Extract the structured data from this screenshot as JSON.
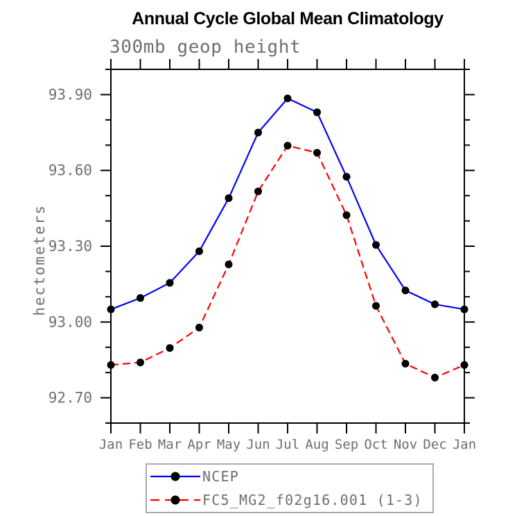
{
  "chart_data": {
    "type": "line",
    "title": "Annual Cycle Global Mean Climatology",
    "subtitle": "300mb geop height",
    "ylabel": "hectometers",
    "xlabel": "",
    "categories": [
      "Jan",
      "Feb",
      "Mar",
      "Apr",
      "May",
      "Jun",
      "Jul",
      "Aug",
      "Sep",
      "Oct",
      "Nov",
      "Dec",
      "Jan"
    ],
    "ylim": [
      92.6,
      94.0
    ],
    "yticks_major": [
      92.7,
      93.0,
      93.3,
      93.6,
      93.9
    ],
    "ytick_labels": [
      "92.70",
      "93.00",
      "93.30",
      "93.60",
      "93.90"
    ],
    "yticks_minor": [
      92.6,
      92.8,
      92.9,
      93.1,
      93.2,
      93.4,
      93.5,
      93.7,
      93.8,
      94.0
    ],
    "grid": false,
    "legend_position": "bottom-center",
    "axis_color": "#000000",
    "text_color": "#6e6e6e",
    "marker_color": "#000000",
    "series": [
      {
        "name": "NCEP",
        "color": "#0000ff",
        "style": "solid",
        "marker": "circle",
        "values": [
          93.05,
          93.095,
          93.155,
          93.28,
          93.49,
          93.75,
          93.885,
          93.83,
          93.575,
          93.305,
          93.125,
          93.07,
          93.05
        ]
      },
      {
        "name": "FC5_MG2_f02g16.001 (1-3)",
        "color": "#ff0000",
        "style": "dashed",
        "marker": "circle",
        "values": [
          92.83,
          92.84,
          92.897,
          92.978,
          93.228,
          93.517,
          93.698,
          93.67,
          93.423,
          93.064,
          92.835,
          92.78,
          92.83
        ]
      }
    ]
  }
}
